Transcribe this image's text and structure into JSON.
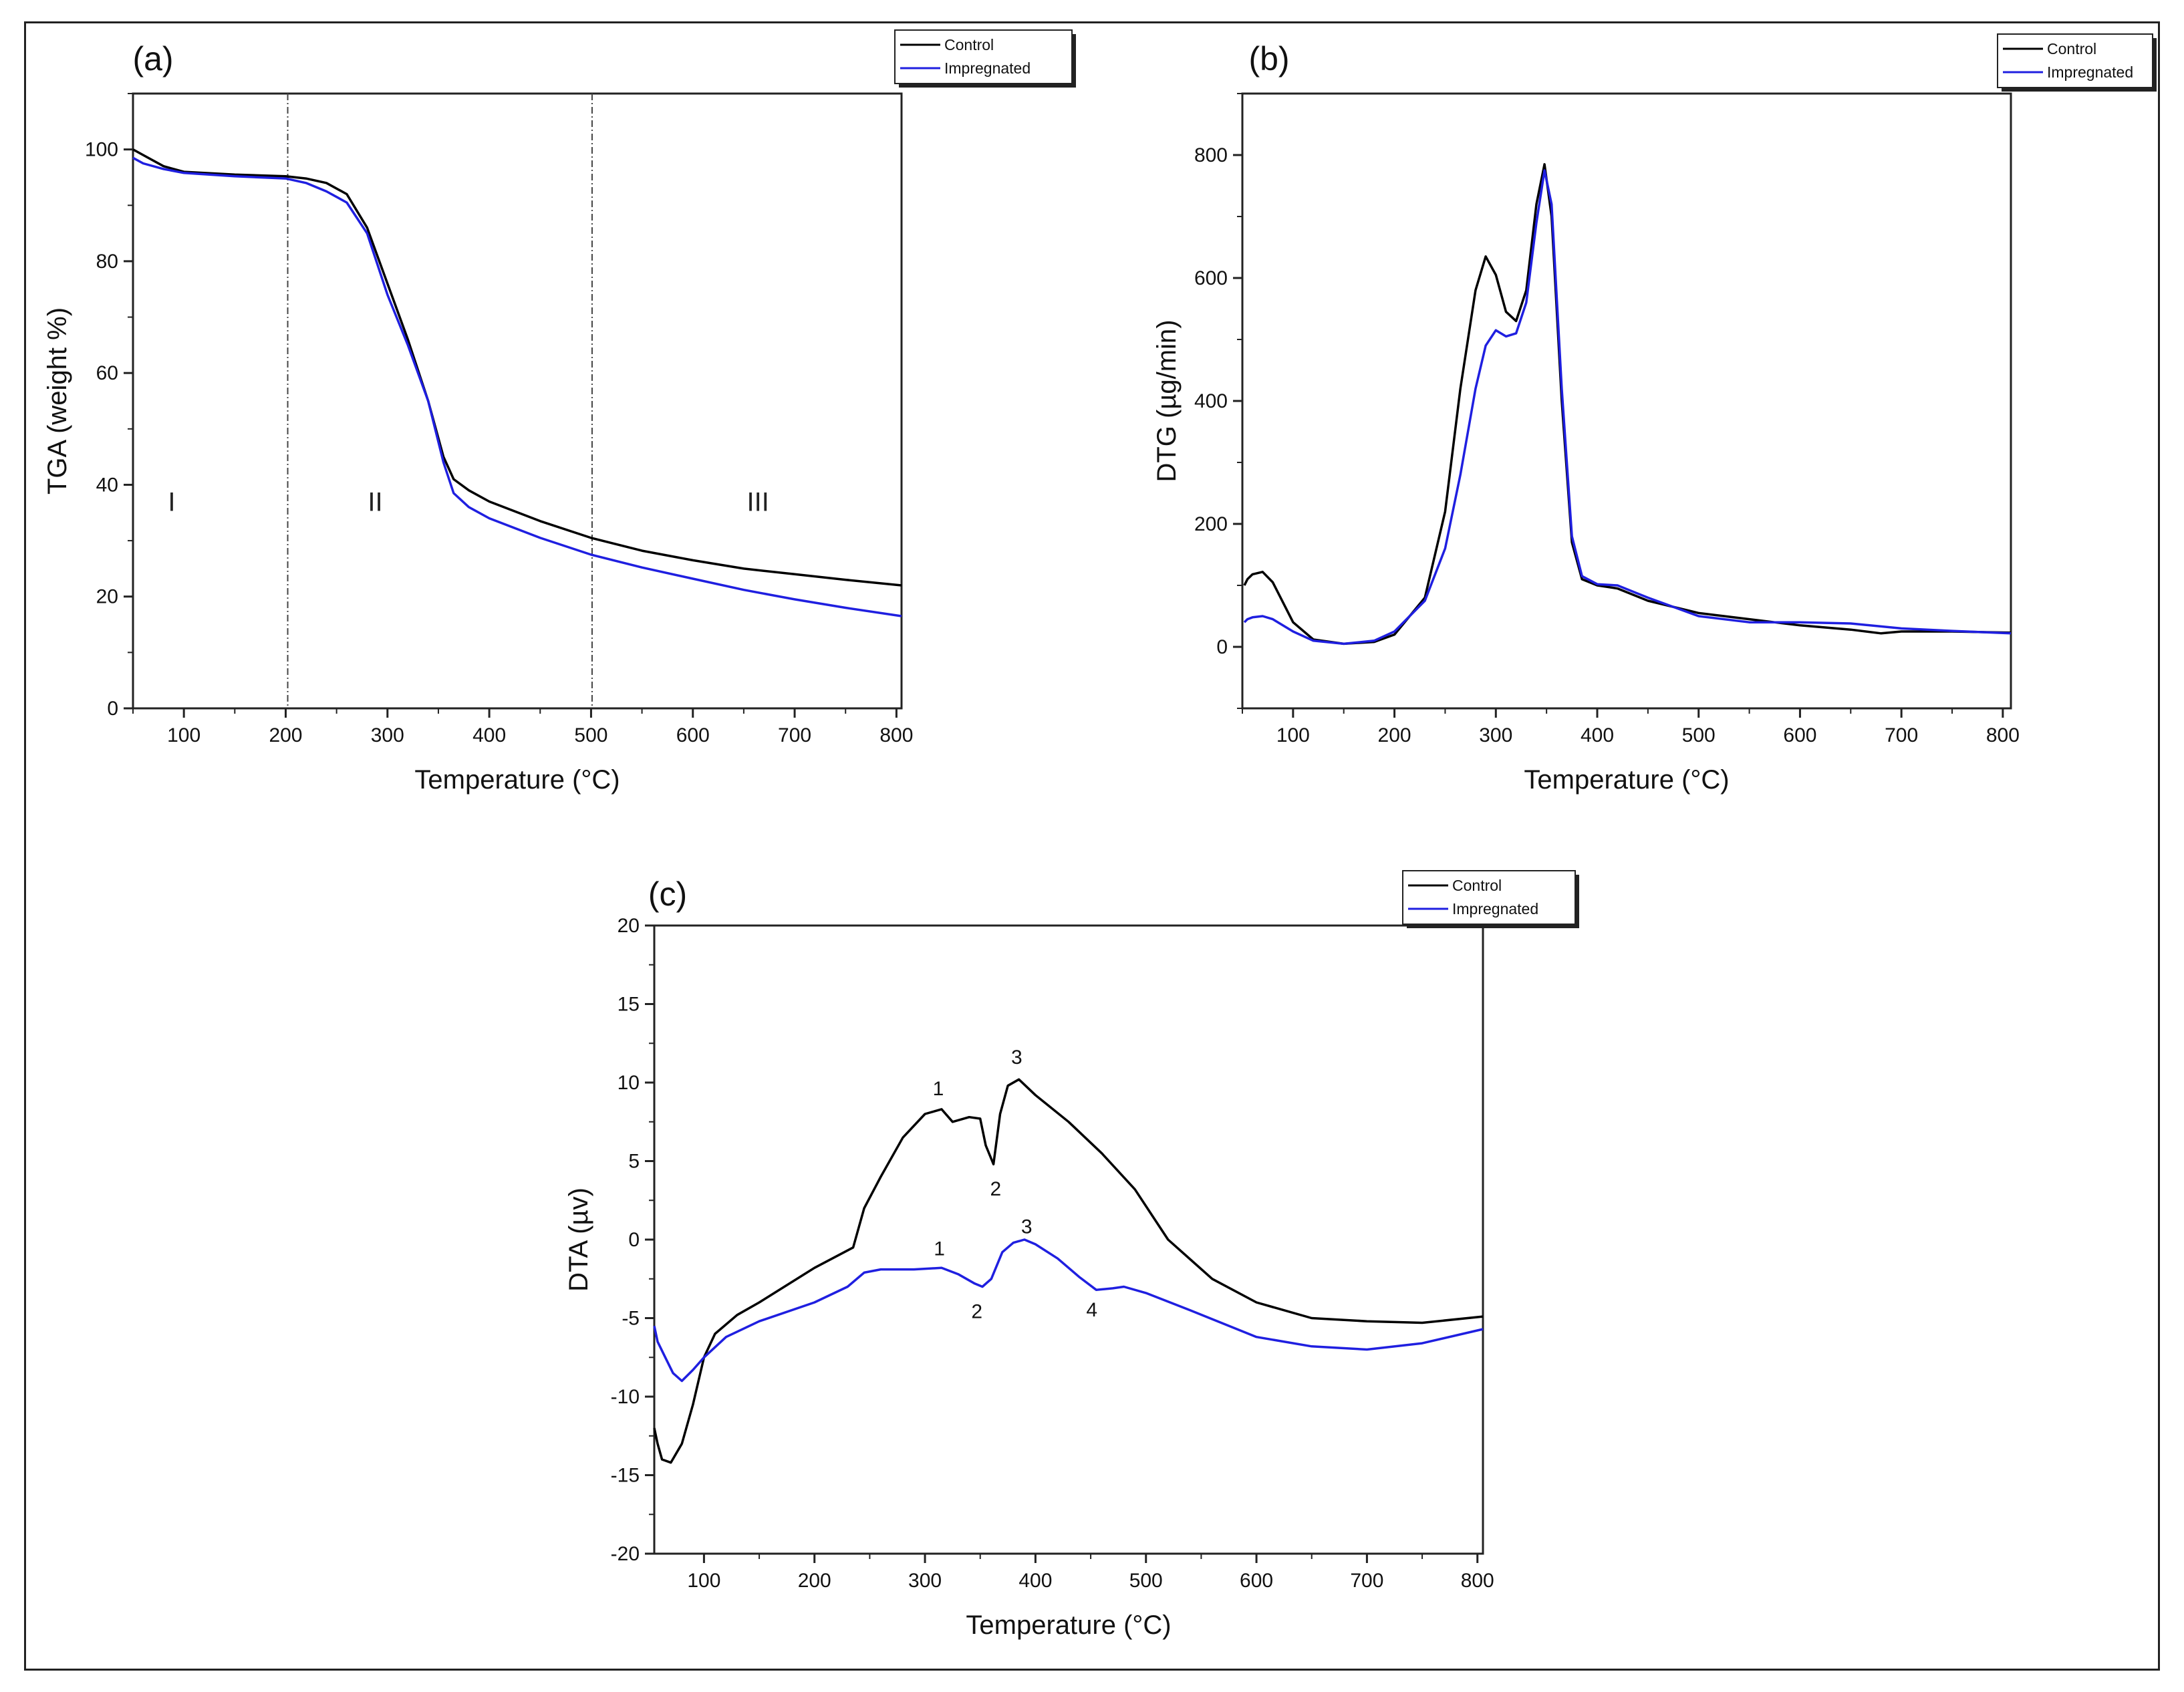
{
  "chart_data": [
    {
      "id": "a",
      "type": "line",
      "panel_label": "(a)",
      "xlabel": "Temperature (°C)",
      "ylabel": "TGA (weight %)",
      "xlim": [
        50,
        805
      ],
      "ylim": [
        0,
        110
      ],
      "xticks": [
        100,
        200,
        300,
        400,
        500,
        600,
        700,
        800
      ],
      "yticks": [
        0,
        20,
        40,
        60,
        80,
        100
      ],
      "legend": [
        "Control",
        "Impregnated"
      ],
      "legend_position": "top-right",
      "series": [
        {
          "name": "Control",
          "color": "#000000",
          "x": [
            50,
            60,
            80,
            100,
            150,
            200,
            220,
            240,
            260,
            280,
            300,
            320,
            340,
            355,
            365,
            380,
            400,
            450,
            500,
            550,
            600,
            650,
            700,
            750,
            805
          ],
          "y": [
            100,
            99,
            97,
            96,
            95.5,
            95.2,
            94.8,
            94,
            92,
            86,
            76,
            66,
            55,
            45,
            41,
            39,
            37,
            33.5,
            30.5,
            28.2,
            26.5,
            25,
            24,
            23,
            22
          ]
        },
        {
          "name": "Impregnated",
          "color": "#1f1fe0",
          "x": [
            50,
            60,
            80,
            100,
            150,
            200,
            220,
            240,
            260,
            280,
            300,
            320,
            340,
            355,
            365,
            380,
            400,
            450,
            500,
            550,
            600,
            650,
            700,
            750,
            805
          ],
          "y": [
            98.5,
            97.5,
            96.5,
            95.8,
            95.2,
            94.8,
            94,
            92.5,
            90.5,
            85,
            74,
            65,
            55,
            44,
            38.5,
            36,
            34,
            30.5,
            27.5,
            25.2,
            23.2,
            21.2,
            19.5,
            18,
            16.5
          ]
        }
      ],
      "vlines": [
        202,
        501
      ],
      "region_labels": [
        {
          "text": "I",
          "x": 88,
          "y": 37
        },
        {
          "text": "II",
          "x": 288,
          "y": 37
        },
        {
          "text": "III",
          "x": 664,
          "y": 37
        }
      ]
    },
    {
      "id": "b",
      "type": "line",
      "panel_label": "(b)",
      "xlabel": "Temperature (°C)",
      "ylabel": "DTG (µg/min)",
      "xlim": [
        50,
        808
      ],
      "ylim": [
        -100,
        900
      ],
      "xticks": [
        100,
        200,
        300,
        400,
        500,
        600,
        700,
        800
      ],
      "yticks": [
        0,
        200,
        400,
        600,
        800
      ],
      "legend": [
        "Control",
        "Impregnated"
      ],
      "legend_position": "top-right",
      "series": [
        {
          "name": "Control",
          "color": "#000000",
          "x": [
            52,
            55,
            60,
            70,
            80,
            100,
            120,
            150,
            180,
            200,
            230,
            250,
            265,
            280,
            290,
            300,
            310,
            320,
            330,
            340,
            348,
            355,
            365,
            375,
            385,
            400,
            420,
            450,
            500,
            550,
            600,
            650,
            680,
            700,
            750,
            808
          ],
          "y": [
            100,
            110,
            118,
            122,
            105,
            40,
            12,
            5,
            8,
            20,
            80,
            220,
            420,
            580,
            635,
            605,
            545,
            530,
            580,
            720,
            785,
            700,
            400,
            170,
            110,
            100,
            95,
            75,
            55,
            45,
            35,
            28,
            22,
            25,
            25,
            23
          ]
        },
        {
          "name": "Impregnated",
          "color": "#1f1fe0",
          "x": [
            52,
            55,
            60,
            70,
            80,
            100,
            120,
            150,
            180,
            200,
            230,
            250,
            265,
            280,
            290,
            300,
            310,
            320,
            330,
            340,
            348,
            355,
            365,
            375,
            385,
            400,
            420,
            450,
            500,
            550,
            600,
            650,
            700,
            750,
            808
          ],
          "y": [
            40,
            45,
            48,
            50,
            45,
            25,
            10,
            5,
            10,
            25,
            75,
            160,
            280,
            420,
            490,
            515,
            505,
            510,
            560,
            690,
            775,
            720,
            420,
            180,
            115,
            102,
            100,
            80,
            50,
            40,
            40,
            38,
            30,
            26,
            22
          ]
        }
      ]
    },
    {
      "id": "c",
      "type": "line",
      "panel_label": "(c)",
      "xlabel": "Temperature (°C)",
      "ylabel": "DTA (µv)",
      "xlim": [
        55,
        805
      ],
      "ylim": [
        -20,
        20
      ],
      "xticks": [
        100,
        200,
        300,
        400,
        500,
        600,
        700,
        800
      ],
      "yticks": [
        -20,
        -15,
        -10,
        -5,
        0,
        5,
        10,
        15,
        20
      ],
      "legend": [
        "Control",
        "Impregnated"
      ],
      "legend_position": "top-right",
      "series": [
        {
          "name": "Control",
          "color": "#000000",
          "x": [
            55,
            58,
            62,
            70,
            80,
            90,
            100,
            110,
            130,
            150,
            200,
            235,
            245,
            260,
            280,
            300,
            315,
            325,
            340,
            350,
            355,
            362,
            368,
            375,
            385,
            400,
            430,
            460,
            490,
            520,
            560,
            600,
            650,
            700,
            750,
            805
          ],
          "y": [
            -12,
            -13,
            -14,
            -14.2,
            -13,
            -10.5,
            -7.5,
            -6,
            -4.8,
            -4,
            -1.8,
            -0.5,
            2,
            4,
            6.5,
            8,
            8.3,
            7.5,
            7.8,
            7.7,
            6,
            4.8,
            8,
            9.8,
            10.2,
            9.2,
            7.5,
            5.5,
            3.2,
            0,
            -2.5,
            -4,
            -5,
            -5.2,
            -5.3,
            -4.9
          ]
        },
        {
          "name": "Impregnated",
          "color": "#1f1fe0",
          "x": [
            55,
            58,
            65,
            72,
            80,
            90,
            100,
            120,
            150,
            200,
            230,
            245,
            260,
            290,
            315,
            330,
            345,
            352,
            360,
            370,
            380,
            390,
            400,
            420,
            440,
            455,
            470,
            480,
            500,
            540,
            600,
            650,
            700,
            750,
            805
          ],
          "y": [
            -5.5,
            -6.5,
            -7.5,
            -8.5,
            -9,
            -8.3,
            -7.5,
            -6.2,
            -5.2,
            -4,
            -3,
            -2.1,
            -1.9,
            -1.9,
            -1.8,
            -2.2,
            -2.8,
            -3,
            -2.5,
            -0.8,
            -0.2,
            0,
            -0.3,
            -1.2,
            -2.4,
            -3.2,
            -3.1,
            -3,
            -3.4,
            -4.5,
            -6.2,
            -6.8,
            -7,
            -6.6,
            -5.7
          ]
        }
      ],
      "annotations": [
        {
          "text": "1",
          "x": 312,
          "y": 9.2
        },
        {
          "text": "2",
          "x": 364,
          "y": 2.8
        },
        {
          "text": "3",
          "x": 383,
          "y": 11.2
        },
        {
          "text": "1",
          "x": 313,
          "y": -1.0
        },
        {
          "text": "2",
          "x": 347,
          "y": -5.0
        },
        {
          "text": "3",
          "x": 392,
          "y": 0.4
        },
        {
          "text": "4",
          "x": 451,
          "y": -4.9
        }
      ]
    }
  ]
}
